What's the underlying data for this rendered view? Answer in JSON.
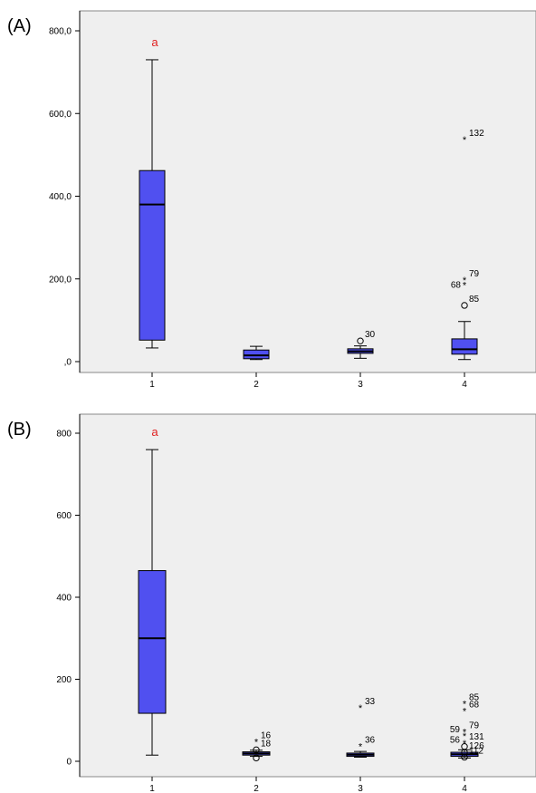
{
  "chart_data": [
    {
      "type": "box",
      "panel_label": "(A)",
      "categories": [
        "1",
        "2",
        "3",
        "4"
      ],
      "ylim": [
        0,
        800
      ],
      "yticks": [
        0,
        200,
        400,
        600,
        800
      ],
      "ytick_labels": [
        ",0",
        "200,0",
        "400,0",
        "600,0",
        "800,0"
      ],
      "grid": false,
      "box_color": "#5050f0",
      "annotation_color": "#e02020",
      "boxes": [
        {
          "category": "1",
          "min": 33,
          "q1": 52,
          "median": 380,
          "q3": 462,
          "max": 730,
          "annotation": "a",
          "outliers": []
        },
        {
          "category": "2",
          "min": 5,
          "q1": 7,
          "median": 15,
          "q3": 28,
          "max": 37,
          "annotation": "",
          "outliers": []
        },
        {
          "category": "3",
          "min": 8,
          "q1": 20,
          "median": 25,
          "q3": 31,
          "max": 38,
          "annotation": "",
          "outliers": [
            {
              "value": 50,
              "marker": "circle",
              "label": "30"
            }
          ]
        },
        {
          "category": "4",
          "min": 5,
          "q1": 18,
          "median": 30,
          "q3": 55,
          "max": 97,
          "annotation": "",
          "outliers": [
            {
              "value": 136,
              "marker": "circle",
              "label": "85"
            },
            {
              "value": 185,
              "marker": "star",
              "label": "68"
            },
            {
              "value": 197,
              "marker": "star",
              "label": "79"
            },
            {
              "value": 537,
              "marker": "star",
              "label": "132"
            }
          ]
        }
      ]
    },
    {
      "type": "box",
      "panel_label": "(B)",
      "categories": [
        "1",
        "2",
        "3",
        "4"
      ],
      "ylim": [
        0,
        800
      ],
      "yticks": [
        0,
        200,
        400,
        600,
        800
      ],
      "ytick_labels": [
        "0",
        "200",
        "400",
        "600",
        "800"
      ],
      "grid": false,
      "box_color": "#5050f0",
      "annotation_color": "#e02020",
      "boxes": [
        {
          "category": "1",
          "min": 15,
          "q1": 117,
          "median": 300,
          "q3": 465,
          "max": 760,
          "annotation": "a",
          "outliers": []
        },
        {
          "category": "2",
          "min": 12,
          "q1": 15,
          "median": 19,
          "q3": 23,
          "max": 27,
          "annotation": "",
          "outliers": [
            {
              "value": 8,
              "marker": "circle",
              "label": ""
            },
            {
              "value": 28,
              "marker": "circle",
              "label": "18"
            },
            {
              "value": 47,
              "marker": "star",
              "label": "16"
            }
          ]
        },
        {
          "category": "3",
          "min": 10,
          "q1": 12,
          "median": 16,
          "q3": 20,
          "max": 24,
          "annotation": "",
          "outliers": [
            {
              "value": 37,
              "marker": "star",
              "label": "36"
            },
            {
              "value": 130,
              "marker": "star",
              "label": "33"
            }
          ]
        },
        {
          "category": "4",
          "min": 8,
          "q1": 12,
          "median": 17,
          "q3": 22,
          "max": 28,
          "annotation": "",
          "outliers": [
            {
              "value": 10,
              "marker": "circle",
              "label": "112"
            },
            {
              "value": 22,
              "marker": "circle",
              "label": "126"
            },
            {
              "value": 36,
              "marker": "circle",
              "label": "56"
            },
            {
              "value": 44,
              "marker": "star",
              "label": "131"
            },
            {
              "value": 62,
              "marker": "star",
              "label": "59"
            },
            {
              "value": 72,
              "marker": "star",
              "label": "79"
            },
            {
              "value": 123,
              "marker": "star",
              "label": "68"
            },
            {
              "value": 140,
              "marker": "star",
              "label": "85"
            }
          ]
        }
      ]
    }
  ]
}
